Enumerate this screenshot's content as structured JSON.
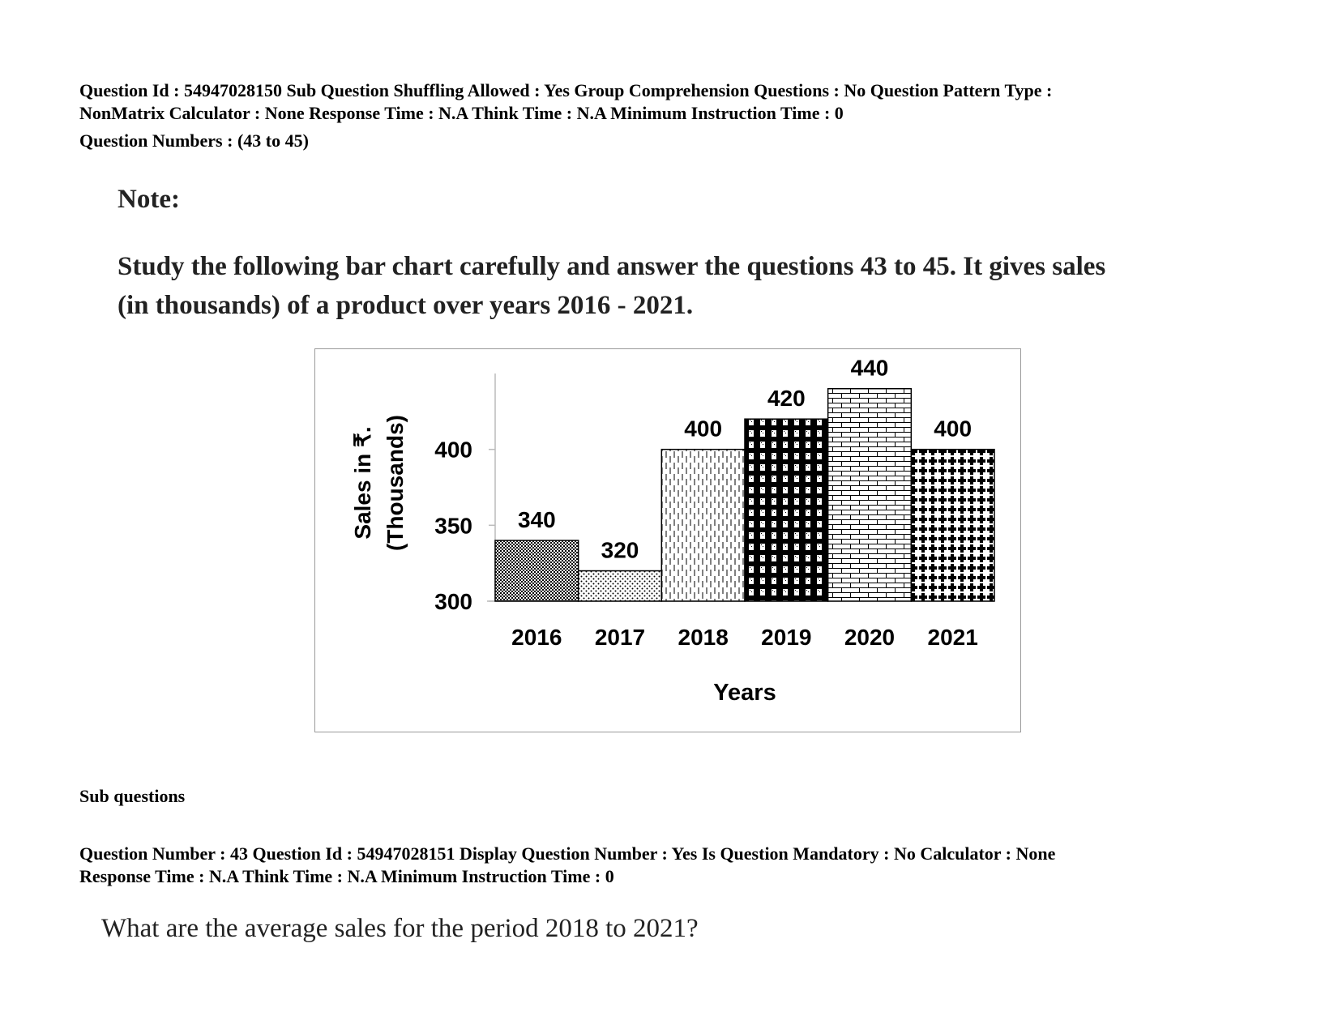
{
  "header": {
    "meta_line1": "Question Id : 54947028150 Sub Question Shuffling Allowed : Yes Group Comprehension Questions : No Question Pattern Type :",
    "meta_line2": "NonMatrix Calculator : None Response Time : N.A Think Time : N.A Minimum Instruction Time : 0",
    "question_numbers": "Question Numbers : (43 to 45)"
  },
  "note": {
    "title": "Note:",
    "line1": "Study the following bar chart carefully and answer the questions 43 to 45. It gives sales",
    "line2": "(in thousands) of a product over years 2016 - 2021."
  },
  "chart_data": {
    "type": "bar",
    "categories": [
      "2016",
      "2017",
      "2018",
      "2019",
      "2020",
      "2021"
    ],
    "values": [
      340,
      320,
      400,
      420,
      440,
      400
    ],
    "data_labels": [
      "340",
      "320",
      "400",
      "420",
      "440",
      "400"
    ],
    "ylabel_line1": "Sales in ₹.",
    "ylabel_line2": "(Thousands)",
    "xlabel": "Years",
    "ylim": [
      300,
      450
    ],
    "yticks": [
      300,
      350,
      400
    ],
    "ytick_labels": [
      "300",
      "350",
      "400"
    ],
    "grid": false,
    "bar_fills": [
      "checker",
      "dots",
      "dashed-vertical",
      "blocks",
      "bricks",
      "crosses"
    ]
  },
  "sub_questions": {
    "heading": "Sub questions",
    "q43": {
      "meta_line1": "Question Number : 43 Question Id : 54947028151 Display Question Number : Yes Is Question Mandatory : No Calculator : None",
      "meta_line2": "Response Time : N.A Think Time : N.A Minimum Instruction Time : 0",
      "text": "What are the average sales for the period 2018 to 2021?"
    }
  }
}
